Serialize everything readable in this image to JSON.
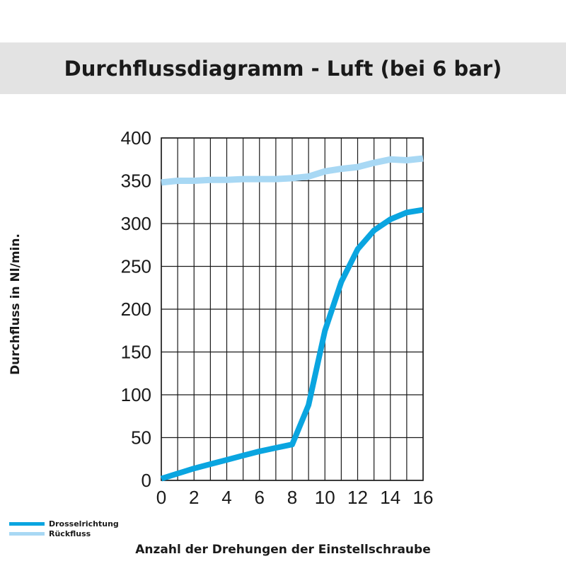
{
  "chart_data": {
    "type": "line",
    "title": "Durchflussdiagramm - Luft (bei 6 bar)",
    "xlabel": "Anzahl der Drehungen der Einstellschraube",
    "ylabel": "Durchfluss in Nl/min.",
    "xlim": [
      0,
      16
    ],
    "ylim": [
      0,
      400
    ],
    "xticks": [
      0,
      2,
      4,
      6,
      8,
      10,
      12,
      14,
      16
    ],
    "yticks": [
      0,
      50,
      100,
      150,
      200,
      250,
      300,
      350,
      400
    ],
    "grid": true,
    "legend_position": "bottom-left",
    "series": [
      {
        "name": "Drosselrichtung",
        "color": "#0aa5e0",
        "x": [
          0,
          1,
          2,
          3,
          4,
          5,
          6,
          7,
          8,
          9,
          10,
          11,
          12,
          13,
          14,
          15,
          16
        ],
        "y": [
          2,
          8,
          14,
          19,
          24,
          29,
          34,
          38,
          42,
          88,
          175,
          232,
          270,
          292,
          305,
          313,
          316
        ]
      },
      {
        "name": "Rückfluss",
        "color": "#a8d8f4",
        "x": [
          0,
          1,
          2,
          3,
          4,
          5,
          6,
          7,
          8,
          9,
          10,
          11,
          12,
          13,
          14,
          15,
          16
        ],
        "y": [
          348,
          350,
          350,
          351,
          351,
          352,
          352,
          352,
          353,
          355,
          361,
          364,
          366,
          371,
          375,
          374,
          376
        ]
      }
    ]
  }
}
